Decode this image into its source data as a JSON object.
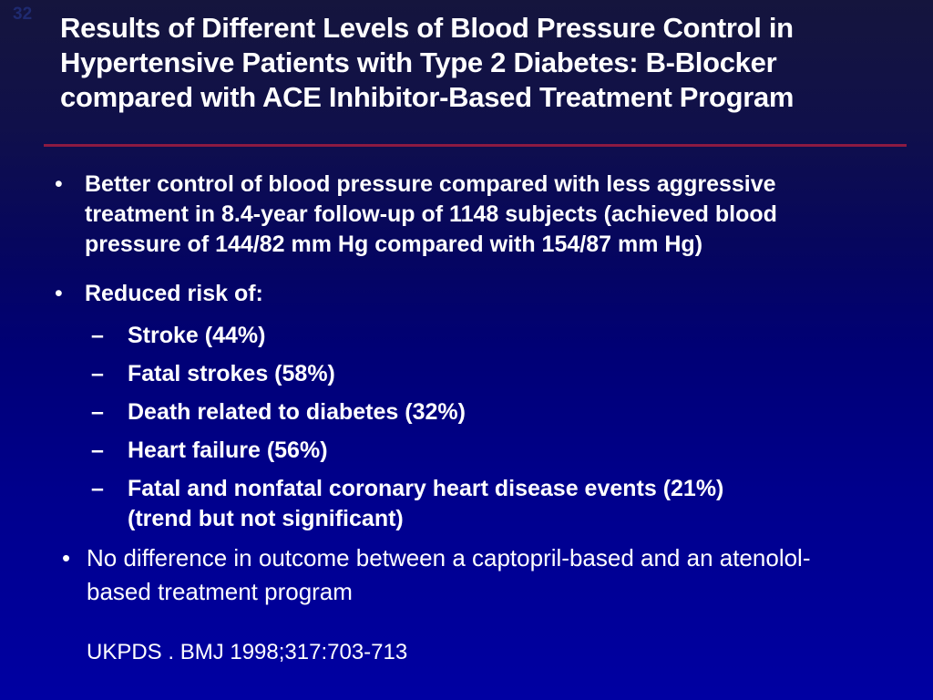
{
  "slide": {
    "number": "32",
    "title": "Results of Different Levels of Blood Pressure Control in\nHypertensive Patients with Type 2 Diabetes: B-Blocker\ncompared with ACE Inhibitor-Based Treatment Program",
    "bullet_glyph": "•",
    "sub_bullet_glyph": "–",
    "bullets": [
      "Better control of blood pressure compared with less aggressive\ntreatment in 8.4-year follow-up of 1148 subjects (achieved blood\npressure of 144/82 mm Hg compared with 154/87 mm Hg)",
      "Reduced risk of:"
    ],
    "sub_bullets": [
      "Stroke (44%)",
      "Fatal strokes (58%)",
      "Death related to diabetes (32%)",
      "Heart failure (56%)",
      "Fatal and nonfatal coronary heart disease events (21%)\n(trend but not significant)"
    ],
    "final_bullet": "No difference in outcome between a captopril-based and an atenolol-\nbased treatment program",
    "citation": "UKPDS . BMJ 1998;317:703-713",
    "colors": {
      "background_top": "#15153d",
      "background_bottom": "#0000a2",
      "divider_red": "#8b1a42",
      "text": "#ffffff",
      "slide_number": "#1f2a70"
    }
  }
}
